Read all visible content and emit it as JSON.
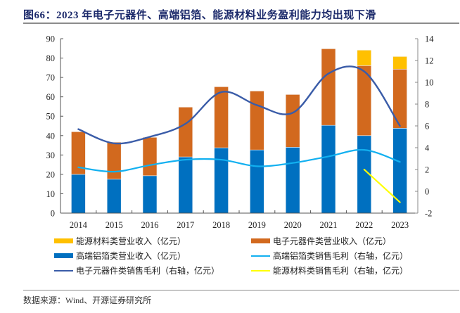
{
  "header": {
    "title": "图66：2023 年电子元器件、高端铝箔、能源材料业务盈利能力均出现下滑"
  },
  "footer": {
    "source": "数据来源：Wind、开源证券研究所"
  },
  "chart_data": {
    "type": "bar",
    "subtype": "stacked bar + line (dual axis)",
    "title": "2023 年电子元器件、高端铝箔、能源材料业务盈利能力均出现下滑",
    "categories": [
      "2014",
      "2015",
      "2016",
      "2017",
      "2018",
      "2019",
      "2020",
      "2021",
      "2022",
      "2023"
    ],
    "left_axis": {
      "label": "",
      "range": [
        0,
        90
      ],
      "ticks": [
        0,
        10,
        20,
        30,
        40,
        50,
        60,
        70,
        80,
        90
      ]
    },
    "right_axis": {
      "label": "",
      "range": [
        -2,
        14
      ],
      "ticks": [
        -2,
        0,
        2,
        4,
        6,
        8,
        10,
        12,
        14
      ]
    },
    "grid": false,
    "legend_position": "bottom",
    "bar_series": [
      {
        "name": "高端铝箔类营业收入（亿元）",
        "color": "#0070c0",
        "axis": "left",
        "values": [
          20.0,
          17.5,
          19.3,
          29.0,
          33.7,
          32.6,
          34.0,
          45.3,
          40.0,
          43.8
        ]
      },
      {
        "name": "电子元器件类营业收入（亿元）",
        "color": "#d2691e",
        "axis": "left",
        "values": [
          22.0,
          19.1,
          19.8,
          25.7,
          31.5,
          30.4,
          27.2,
          39.5,
          36.1,
          30.5
        ]
      },
      {
        "name": "能源材料类营业收入（亿元）",
        "color": "#ffc000",
        "axis": "left",
        "values": [
          null,
          null,
          null,
          null,
          null,
          null,
          null,
          null,
          8.0,
          6.5
        ]
      }
    ],
    "line_series": [
      {
        "name": "电子元器件类销售毛利（右轴，亿元）",
        "color": "#3a5ca8",
        "axis": "right",
        "values": [
          5.7,
          4.4,
          5.0,
          6.2,
          9.1,
          7.9,
          7.2,
          10.8,
          11.0,
          6.0
        ]
      },
      {
        "name": "高端铝箔类销售毛利（右轴，亿元）",
        "color": "#12b0f0",
        "axis": "right",
        "values": [
          2.2,
          1.8,
          2.4,
          2.9,
          2.9,
          2.3,
          2.6,
          3.2,
          3.8,
          2.7
        ]
      },
      {
        "name": "能源材料类销售毛利（右轴，亿元）",
        "color": "#ffff00",
        "axis": "right",
        "values": [
          null,
          null,
          null,
          null,
          null,
          null,
          null,
          null,
          2.0,
          -1.0
        ]
      }
    ],
    "legend": [
      {
        "name": "能源材料类营业收入（亿元）",
        "kind": "bar",
        "color": "#ffc000"
      },
      {
        "name": "电子元器件类营业收入（亿元）",
        "kind": "bar",
        "color": "#d2691e"
      },
      {
        "name": "高端铝箔类营业收入（亿元）",
        "kind": "bar",
        "color": "#0070c0"
      },
      {
        "name": "高端铝箔类销售毛利（右轴，亿元）",
        "kind": "line",
        "color": "#12b0f0"
      },
      {
        "name": "电子元器件类销售毛利（右轴，亿元）",
        "kind": "line",
        "color": "#3a5ca8"
      },
      {
        "name": "能源材料类销售毛利（右轴，亿元）",
        "kind": "line",
        "color": "#ffff00"
      }
    ]
  }
}
